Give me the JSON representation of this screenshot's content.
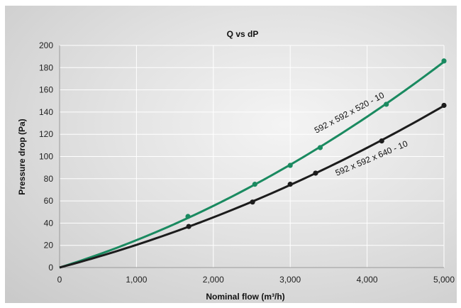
{
  "chart_data": {
    "type": "line",
    "title": "Q vs dP",
    "xlabel": "Nominal flow (m³/h)",
    "ylabel": "Pressure drop (Pa)",
    "xlim": [
      0,
      5000
    ],
    "ylim": [
      0,
      200
    ],
    "x_ticks": [
      "0",
      "1,000",
      "2,000",
      "3,000",
      "4,000",
      "5,000"
    ],
    "y_ticks": [
      "0",
      "20",
      "40",
      "60",
      "80",
      "100",
      "120",
      "140",
      "160",
      "180",
      "200"
    ],
    "grid": true,
    "series": [
      {
        "name": "592 x 592 x 520 - 10",
        "color": "#1a8a60",
        "points": [
          [
            0,
            0
          ],
          [
            1670,
            46
          ],
          [
            2540,
            75
          ],
          [
            3000,
            92
          ],
          [
            3390,
            108
          ],
          [
            4250,
            147
          ],
          [
            5000,
            186
          ]
        ]
      },
      {
        "name": "592 x 592 x 640 - 10",
        "color": "#1c1c1c",
        "points": [
          [
            0,
            0
          ],
          [
            1680,
            37
          ],
          [
            2510,
            59
          ],
          [
            3000,
            75
          ],
          [
            3330,
            85
          ],
          [
            4190,
            114
          ],
          [
            5000,
            146
          ]
        ]
      }
    ]
  }
}
